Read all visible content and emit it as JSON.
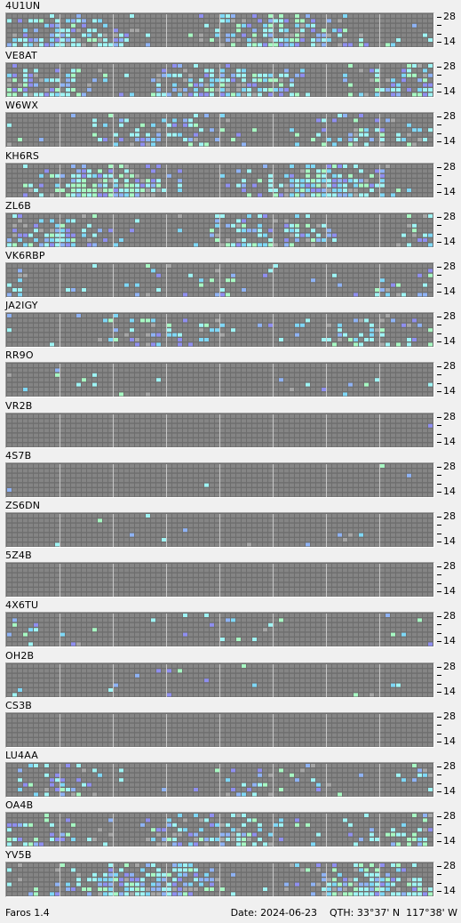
{
  "app": {
    "name": "Faros 1.4"
  },
  "status": {
    "date_label": "Date:",
    "date": "2024-06-23",
    "qth_label": "QTH:",
    "qth": "33°37' N  117°38' W"
  },
  "scale": {
    "top_label": "28",
    "bottom_label": "14",
    "mid_labels": [
      "-",
      "-"
    ]
  },
  "colors": {
    "cell_empty": "#858585",
    "cell_background": "#6e6e6e",
    "hour_divider": "#c8c8c8",
    "signal_strong": "#a7f9c3",
    "signal_good": "#9ff5f5",
    "signal_medium": "#7fd8f7",
    "signal_weak": "#8fb3f5",
    "signal_faint": "#8f8ff0",
    "signal_trace": "#a6a6a6"
  },
  "beacons": [
    {
      "call": "4U1UN",
      "activity_level": 0.85
    },
    {
      "call": "VE8AT",
      "activity_level": 0.8
    },
    {
      "call": "W6WX",
      "activity_level": 0.45
    },
    {
      "call": "KH6RS",
      "activity_level": 0.95
    },
    {
      "call": "ZL6B",
      "activity_level": 0.6
    },
    {
      "call": "VK6RBP",
      "activity_level": 0.25
    },
    {
      "call": "JA2IGY",
      "activity_level": 0.35
    },
    {
      "call": "RR9O",
      "activity_level": 0.06
    },
    {
      "call": "VR2B",
      "activity_level": 0.01
    },
    {
      "call": "4S7B",
      "activity_level": 0.01
    },
    {
      "call": "ZS6DN",
      "activity_level": 0.05
    },
    {
      "call": "5Z4B",
      "activity_level": 0.0
    },
    {
      "call": "4X6TU",
      "activity_level": 0.12
    },
    {
      "call": "OH2B",
      "activity_level": 0.08
    },
    {
      "call": "CS3B",
      "activity_level": 0.0
    },
    {
      "call": "LU4AA",
      "activity_level": 0.3
    },
    {
      "call": "OA4B",
      "activity_level": 0.55
    },
    {
      "call": "YV5B",
      "activity_level": 0.9
    }
  ]
}
